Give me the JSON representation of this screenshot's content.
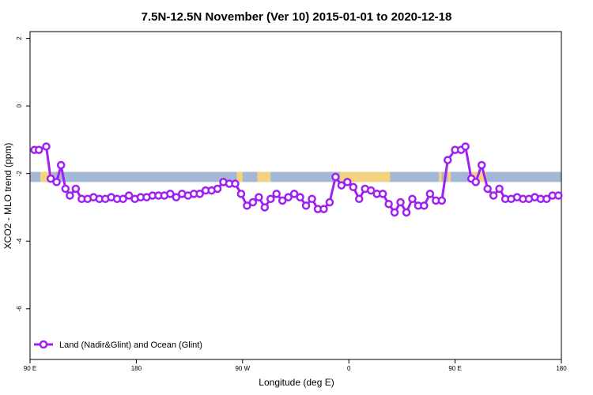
{
  "chart_data": {
    "type": "line",
    "title": "7.5N-12.5N November (Ver 10)   2015-01-01 to 2020-12-18",
    "xlabel": "Longitude (deg E)",
    "ylabel": "XCO2 - MLO trend (ppm)",
    "xlim": [
      90,
      450
    ],
    "ylim": [
      -7.5,
      2.2
    ],
    "x_ticks": [
      {
        "value": 90,
        "label": "90 E"
      },
      {
        "value": 162,
        "label": "180"
      },
      {
        "value": 234,
        "label": "90 W"
      },
      {
        "value": 306,
        "label": "0"
      },
      {
        "value": 378,
        "label": "90 E"
      },
      {
        "value": 450,
        "label": "180"
      }
    ],
    "y_ticks": [
      {
        "value": 2,
        "label": "2"
      },
      {
        "value": 0,
        "label": "0"
      },
      {
        "value": -2,
        "label": "-2"
      },
      {
        "value": -4,
        "label": "-4"
      },
      {
        "value": -6,
        "label": "-6"
      }
    ],
    "legend": {
      "position": "bottom-left",
      "label": "Land (Nadir&Glint) and Ocean (Glint)"
    },
    "colors": {
      "series": "#a020f0",
      "ocean_band": "#a3b8d6",
      "land_band": "#f5d27f"
    },
    "band": {
      "y_top": -1.95,
      "y_bottom": -2.25
    },
    "land_segments": [
      [
        97,
        105
      ],
      [
        230,
        234
      ],
      [
        244,
        253
      ],
      [
        300,
        334
      ],
      [
        367,
        369
      ],
      [
        373,
        375
      ],
      [
        388,
        399
      ]
    ],
    "series": [
      {
        "x": [
          93,
          96,
          101,
          104,
          108,
          111,
          114,
          117,
          121,
          125,
          129,
          133,
          137,
          141,
          145,
          149,
          153,
          157,
          161,
          165,
          169,
          173,
          177,
          181,
          185,
          189,
          193,
          197,
          201,
          205,
          209,
          213,
          217,
          221,
          225,
          229,
          233,
          237,
          241,
          245,
          249,
          253,
          257,
          261,
          265,
          269,
          273,
          277,
          281,
          285,
          289,
          293,
          297,
          301,
          305,
          309,
          313,
          317,
          321,
          325,
          329,
          333,
          337,
          341,
          345,
          349,
          353,
          357,
          361,
          365,
          369,
          373,
          378,
          382,
          385,
          389,
          392,
          396,
          400,
          404,
          408,
          412,
          416,
          420,
          424,
          428,
          432,
          436,
          440,
          444,
          448
        ],
        "y": [
          -1.3,
          -1.3,
          -1.2,
          -2.15,
          -2.25,
          -1.75,
          -2.45,
          -2.65,
          -2.45,
          -2.75,
          -2.75,
          -2.7,
          -2.75,
          -2.75,
          -2.7,
          -2.75,
          -2.75,
          -2.65,
          -2.75,
          -2.7,
          -2.7,
          -2.65,
          -2.65,
          -2.65,
          -2.6,
          -2.7,
          -2.6,
          -2.65,
          -2.6,
          -2.6,
          -2.5,
          -2.5,
          -2.45,
          -2.25,
          -2.3,
          -2.3,
          -2.6,
          -2.95,
          -2.85,
          -2.7,
          -3.0,
          -2.75,
          -2.6,
          -2.8,
          -2.7,
          -2.6,
          -2.7,
          -2.95,
          -2.75,
          -3.05,
          -3.05,
          -2.85,
          -2.1,
          -2.35,
          -2.25,
          -2.4,
          -2.75,
          -2.45,
          -2.5,
          -2.6,
          -2.6,
          -2.9,
          -3.15,
          -2.85,
          -3.15,
          -2.75,
          -2.95,
          -2.95,
          -2.6,
          -2.8,
          -2.8,
          -1.6,
          -1.3,
          -1.3,
          -1.2,
          -2.15,
          -2.25,
          -1.75,
          -2.45,
          -2.65,
          -2.45,
          -2.75,
          -2.75,
          -2.7,
          -2.75,
          -2.75,
          -2.7,
          -2.75,
          -2.75,
          -2.65,
          -2.65
        ]
      }
    ]
  }
}
